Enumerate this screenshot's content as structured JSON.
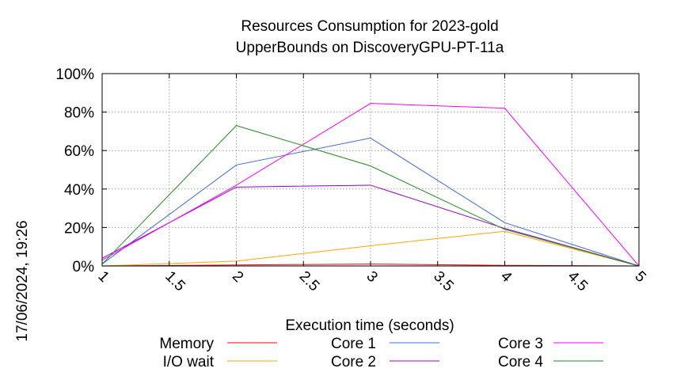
{
  "chart_data": {
    "type": "line",
    "title": [
      "Resources Consumption for 2023-gold",
      "UpperBounds on DiscoveryGPU-PT-11a"
    ],
    "xlabel": "Execution time (seconds)",
    "ylabel": "",
    "side_label": "17/06/2024, 19:26",
    "xlim": [
      1,
      5
    ],
    "ylim": [
      0,
      100
    ],
    "x_ticks": [
      "1",
      "1.5",
      "2",
      "2.5",
      "3",
      "3.5",
      "4",
      "4.5",
      "5"
    ],
    "y_ticks": [
      "0%",
      "20%",
      "40%",
      "60%",
      "80%",
      "100%"
    ],
    "grid": true,
    "legend_position": "bottom",
    "x": [
      1,
      2,
      3,
      4,
      5
    ],
    "series": [
      {
        "name": "Memory",
        "color": "#ff0000",
        "values": [
          0,
          0.5,
          1,
          0.3,
          0
        ]
      },
      {
        "name": "I/O wait",
        "color": "#ffa500",
        "values": [
          0,
          2.5,
          10.5,
          18,
          0
        ]
      },
      {
        "name": "Core 1",
        "color": "#4169e1",
        "values": [
          1,
          52.5,
          66.5,
          22.5,
          0
        ]
      },
      {
        "name": "Core 2",
        "color": "#9400d3",
        "values": [
          4,
          41,
          42,
          19.5,
          0
        ]
      },
      {
        "name": "Core 3",
        "color": "#ff00ff",
        "values": [
          3,
          42,
          84.5,
          82,
          0
        ]
      },
      {
        "name": "Core 4",
        "color": "#228b22",
        "values": [
          1,
          73,
          52,
          19,
          0
        ]
      }
    ]
  }
}
